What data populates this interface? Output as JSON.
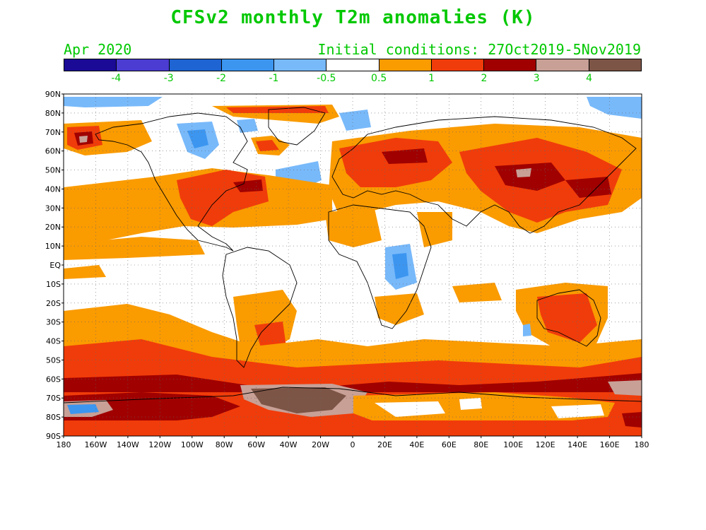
{
  "title": "CFSv2 monthly T2m anomalies (K)",
  "period": "Apr 2020",
  "initial_conditions": "Initial conditions: 27Oct2019-5Nov2019",
  "colorbar": {
    "colors": [
      "#1a0a96",
      "#4b3cd2",
      "#1e64d2",
      "#3c96f0",
      "#78b9fa",
      "#ffffff",
      "#fa9b00",
      "#f03c0a",
      "#a00000",
      "#c8a096",
      "#7d5546"
    ],
    "labels": [
      "-4",
      "-3",
      "-2",
      "-1",
      "-0.5",
      "0.5",
      "1",
      "2",
      "3",
      "4"
    ]
  },
  "map": {
    "lat_labels": [
      "90N",
      "80N",
      "70N",
      "60N",
      "50N",
      "40N",
      "30N",
      "20N",
      "10N",
      "EQ",
      "10S",
      "20S",
      "30S",
      "40S",
      "50S",
      "60S",
      "70S",
      "80S",
      "90S"
    ],
    "lon_labels": [
      "180",
      "160W",
      "140W",
      "120W",
      "100W",
      "80W",
      "60W",
      "40W",
      "20W",
      "0",
      "20E",
      "40E",
      "60E",
      "80E",
      "100E",
      "120E",
      "140E",
      "160E",
      "180"
    ]
  }
}
